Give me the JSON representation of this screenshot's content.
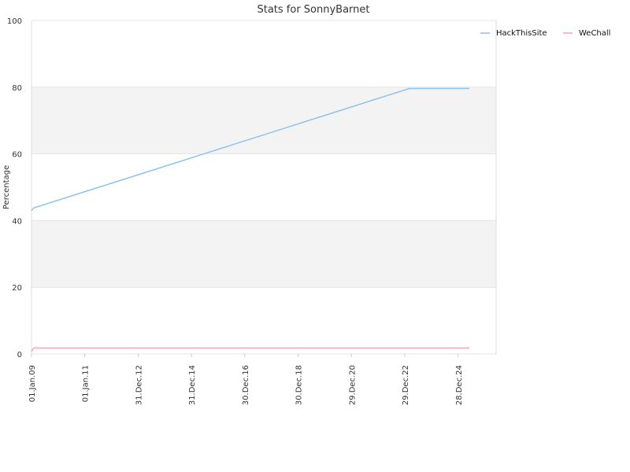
{
  "chart_data": {
    "type": "line",
    "title": "Stats for SonnyBarnet",
    "xlabel": "",
    "ylabel": "Percentage",
    "ylim": [
      0,
      100
    ],
    "yticks": [
      0,
      20,
      40,
      60,
      80,
      100
    ],
    "xlim": [
      "2009-01-01",
      "2026-06-01"
    ],
    "xticks": [
      {
        "label": "01.Jan.09",
        "date": "2009-01-01"
      },
      {
        "label": "01.Jan.11",
        "date": "2011-01-01"
      },
      {
        "label": "31.Dec.12",
        "date": "2012-12-31"
      },
      {
        "label": "31.Dec.14",
        "date": "2014-12-31"
      },
      {
        "label": "30.Dec.16",
        "date": "2016-12-30"
      },
      {
        "label": "30.Dec.18",
        "date": "2018-12-30"
      },
      {
        "label": "29.Dec.20",
        "date": "2020-12-29"
      },
      {
        "label": "29.Dec.22",
        "date": "2022-12-29"
      },
      {
        "label": "28.Dec.24",
        "date": "2024-12-28"
      }
    ],
    "grid": "horizontal-bands",
    "legend_position": "top-right",
    "series": [
      {
        "name": "HackThisSite",
        "color": "#8ec2ec",
        "points": [
          {
            "x": "2009-01-01",
            "y": 43
          },
          {
            "x": "2009-02-01",
            "y": 43.8
          },
          {
            "x": "2023-03-01",
            "y": 79.6
          },
          {
            "x": "2025-06-01",
            "y": 79.6
          }
        ]
      },
      {
        "name": "WeChall",
        "color": "#f4a6bf",
        "points": [
          {
            "x": "2009-01-01",
            "y": 0.8
          },
          {
            "x": "2009-02-01",
            "y": 1.8
          },
          {
            "x": "2025-06-01",
            "y": 1.8
          }
        ]
      }
    ]
  }
}
